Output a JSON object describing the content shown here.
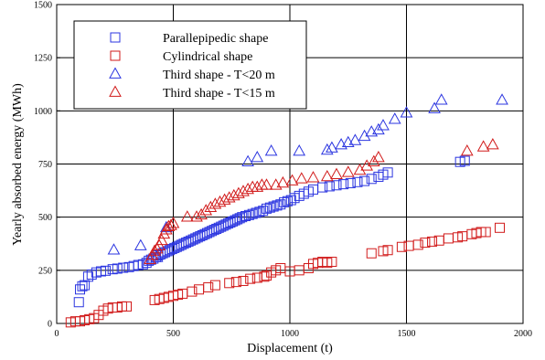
{
  "chart_data": {
    "type": "scatter",
    "title": "",
    "xlabel": "Displacement (t)",
    "ylabel": "Yearly absorbed energy (MWh)",
    "xlim": [
      0,
      2000
    ],
    "ylim": [
      0,
      1500
    ],
    "x_ticks": [
      0,
      500,
      1000,
      1500,
      2000
    ],
    "y_ticks": [
      0,
      250,
      500,
      750,
      1000,
      1250,
      1500
    ],
    "x_tick_labels": [
      "0",
      "500",
      "1000",
      "1500",
      "2000"
    ],
    "y_tick_labels": [
      "0",
      "250",
      "500",
      "750",
      "1000",
      "1250",
      "1500"
    ],
    "grid": true,
    "legend_position": "top-left",
    "series": [
      {
        "name": "Parallepipedic shape",
        "marker": "square",
        "color": "#2b35e0",
        "points": [
          [
            95,
            100
          ],
          [
            100,
            160
          ],
          [
            110,
            175
          ],
          [
            120,
            180
          ],
          [
            135,
            220
          ],
          [
            150,
            230
          ],
          [
            170,
            240
          ],
          [
            190,
            245
          ],
          [
            210,
            248
          ],
          [
            240,
            255
          ],
          [
            260,
            258
          ],
          [
            285,
            262
          ],
          [
            310,
            265
          ],
          [
            330,
            270
          ],
          [
            350,
            275
          ],
          [
            370,
            278
          ],
          [
            385,
            285
          ],
          [
            395,
            295
          ],
          [
            405,
            300
          ],
          [
            415,
            305
          ],
          [
            425,
            312
          ],
          [
            435,
            320
          ],
          [
            445,
            325
          ],
          [
            455,
            330
          ],
          [
            465,
            335
          ],
          [
            475,
            340
          ],
          [
            485,
            345
          ],
          [
            495,
            350
          ],
          [
            505,
            355
          ],
          [
            515,
            360
          ],
          [
            525,
            365
          ],
          [
            535,
            370
          ],
          [
            545,
            375
          ],
          [
            555,
            380
          ],
          [
            565,
            385
          ],
          [
            575,
            390
          ],
          [
            585,
            395
          ],
          [
            595,
            400
          ],
          [
            605,
            405
          ],
          [
            615,
            410
          ],
          [
            625,
            415
          ],
          [
            635,
            420
          ],
          [
            645,
            425
          ],
          [
            655,
            430
          ],
          [
            665,
            435
          ],
          [
            675,
            440
          ],
          [
            685,
            445
          ],
          [
            695,
            450
          ],
          [
            705,
            455
          ],
          [
            715,
            460
          ],
          [
            725,
            465
          ],
          [
            735,
            470
          ],
          [
            745,
            475
          ],
          [
            755,
            480
          ],
          [
            765,
            485
          ],
          [
            775,
            490
          ],
          [
            785,
            495
          ],
          [
            795,
            500
          ],
          [
            810,
            505
          ],
          [
            825,
            510
          ],
          [
            840,
            515
          ],
          [
            855,
            520
          ],
          [
            870,
            525
          ],
          [
            885,
            530
          ],
          [
            900,
            540
          ],
          [
            915,
            545
          ],
          [
            930,
            550
          ],
          [
            945,
            555
          ],
          [
            960,
            560
          ],
          [
            975,
            570
          ],
          [
            990,
            575
          ],
          [
            1005,
            580
          ],
          [
            1020,
            590
          ],
          [
            1040,
            600
          ],
          [
            1060,
            610
          ],
          [
            1080,
            620
          ],
          [
            1100,
            630
          ],
          [
            1140,
            640
          ],
          [
            1170,
            645
          ],
          [
            1200,
            650
          ],
          [
            1230,
            655
          ],
          [
            1260,
            660
          ],
          [
            1290,
            665
          ],
          [
            1320,
            670
          ],
          [
            1350,
            680
          ],
          [
            1380,
            690
          ],
          [
            1400,
            700
          ],
          [
            1420,
            710
          ],
          [
            1730,
            760
          ],
          [
            1750,
            765
          ]
        ]
      },
      {
        "name": "Cylindrical shape",
        "marker": "square",
        "color": "#d11a1a",
        "points": [
          [
            60,
            5
          ],
          [
            80,
            10
          ],
          [
            100,
            10
          ],
          [
            120,
            15
          ],
          [
            140,
            20
          ],
          [
            160,
            25
          ],
          [
            180,
            40
          ],
          [
            200,
            60
          ],
          [
            220,
            70
          ],
          [
            240,
            75
          ],
          [
            260,
            75
          ],
          [
            280,
            80
          ],
          [
            300,
            80
          ],
          [
            420,
            110
          ],
          [
            440,
            115
          ],
          [
            460,
            120
          ],
          [
            480,
            125
          ],
          [
            500,
            130
          ],
          [
            520,
            135
          ],
          [
            540,
            140
          ],
          [
            580,
            150
          ],
          [
            610,
            160
          ],
          [
            650,
            170
          ],
          [
            680,
            180
          ],
          [
            740,
            190
          ],
          [
            770,
            195
          ],
          [
            800,
            200
          ],
          [
            830,
            210
          ],
          [
            860,
            215
          ],
          [
            890,
            220
          ],
          [
            900,
            225
          ],
          [
            920,
            240
          ],
          [
            940,
            250
          ],
          [
            960,
            260
          ],
          [
            1000,
            245
          ],
          [
            1040,
            250
          ],
          [
            1080,
            260
          ],
          [
            1100,
            280
          ],
          [
            1120,
            285
          ],
          [
            1140,
            290
          ],
          [
            1160,
            285
          ],
          [
            1180,
            290
          ],
          [
            1350,
            330
          ],
          [
            1400,
            340
          ],
          [
            1420,
            345
          ],
          [
            1480,
            360
          ],
          [
            1510,
            365
          ],
          [
            1550,
            370
          ],
          [
            1580,
            380
          ],
          [
            1610,
            385
          ],
          [
            1640,
            390
          ],
          [
            1680,
            400
          ],
          [
            1720,
            405
          ],
          [
            1740,
            410
          ],
          [
            1780,
            420
          ],
          [
            1800,
            425
          ],
          [
            1820,
            430
          ],
          [
            1840,
            430
          ],
          [
            1900,
            450
          ]
        ]
      },
      {
        "name": "Third shape - T<20 m",
        "marker": "triangle",
        "color": "#2b35e0",
        "points": [
          [
            245,
            345
          ],
          [
            360,
            365
          ],
          [
            430,
            310
          ],
          [
            470,
            450
          ],
          [
            820,
            760
          ],
          [
            860,
            780
          ],
          [
            920,
            810
          ],
          [
            1040,
            810
          ],
          [
            1160,
            815
          ],
          [
            1180,
            825
          ],
          [
            1220,
            840
          ],
          [
            1250,
            850
          ],
          [
            1280,
            860
          ],
          [
            1320,
            880
          ],
          [
            1350,
            900
          ],
          [
            1380,
            910
          ],
          [
            1400,
            930
          ],
          [
            1450,
            960
          ],
          [
            1500,
            990
          ],
          [
            1620,
            1010
          ],
          [
            1650,
            1050
          ],
          [
            1910,
            1050
          ]
        ]
      },
      {
        "name": "Third shape - T<15 m",
        "marker": "triangle",
        "color": "#d11a1a",
        "points": [
          [
            400,
            300
          ],
          [
            410,
            320
          ],
          [
            420,
            340
          ],
          [
            430,
            350
          ],
          [
            440,
            365
          ],
          [
            450,
            390
          ],
          [
            460,
            420
          ],
          [
            470,
            440
          ],
          [
            480,
            455
          ],
          [
            490,
            460
          ],
          [
            500,
            470
          ],
          [
            560,
            500
          ],
          [
            600,
            500
          ],
          [
            620,
            510
          ],
          [
            640,
            530
          ],
          [
            660,
            545
          ],
          [
            680,
            560
          ],
          [
            700,
            570
          ],
          [
            720,
            580
          ],
          [
            740,
            590
          ],
          [
            760,
            600
          ],
          [
            780,
            610
          ],
          [
            800,
            620
          ],
          [
            820,
            630
          ],
          [
            840,
            640
          ],
          [
            860,
            640
          ],
          [
            880,
            650
          ],
          [
            900,
            650
          ],
          [
            940,
            650
          ],
          [
            970,
            660
          ],
          [
            1010,
            670
          ],
          [
            1050,
            680
          ],
          [
            1100,
            685
          ],
          [
            1160,
            690
          ],
          [
            1200,
            700
          ],
          [
            1250,
            710
          ],
          [
            1300,
            720
          ],
          [
            1330,
            740
          ],
          [
            1360,
            760
          ],
          [
            1380,
            780
          ],
          [
            1760,
            810
          ],
          [
            1830,
            830
          ],
          [
            1870,
            840
          ]
        ]
      }
    ]
  }
}
